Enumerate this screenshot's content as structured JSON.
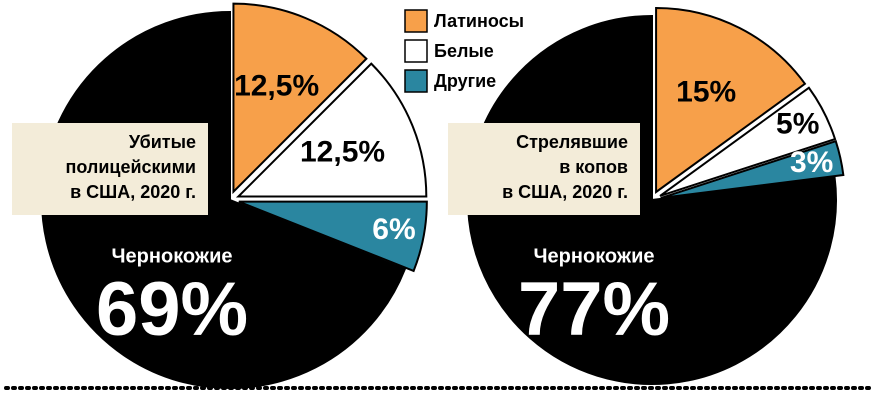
{
  "chart_data": [
    {
      "type": "pie",
      "title": [
        "Убитые",
        "полицейскими",
        "в США, 2020 г."
      ],
      "categories": [
        "Чернокожие",
        "Латиносы",
        "Белые",
        "Другие"
      ],
      "values": [
        69,
        12.5,
        12.5,
        6
      ],
      "value_labels": [
        "69%",
        "12,5%",
        "12,5%",
        "6%"
      ],
      "colors": [
        "#000000",
        "#f7a04a",
        "#ffffff",
        "#2a86a0"
      ]
    },
    {
      "type": "pie",
      "title": [
        "Стрелявшие",
        "в копов",
        "в США, 2020 г."
      ],
      "categories": [
        "Чернокожие",
        "Латиносы",
        "Белые",
        "Другие"
      ],
      "values": [
        77,
        15,
        5,
        3
      ],
      "value_labels": [
        "77%",
        "15%",
        "5%",
        "3%"
      ],
      "colors": [
        "#000000",
        "#f7a04a",
        "#ffffff",
        "#2a86a0"
      ]
    }
  ]
}
